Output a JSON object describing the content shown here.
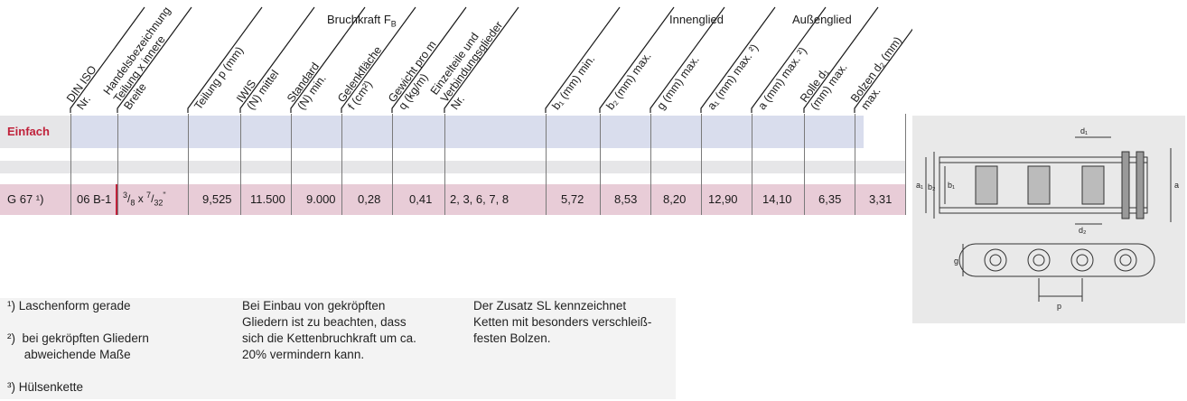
{
  "header": {
    "columns": [
      {
        "id": "din",
        "lines": [
          "DIN ISO",
          "Nr."
        ]
      },
      {
        "id": "handel",
        "lines": [
          "Handelsbezeichnung",
          "Teilung x innere",
          "Breite"
        ]
      },
      {
        "id": "teilung",
        "lines": [
          "Teilung p (mm)"
        ]
      },
      {
        "id": "iwis",
        "lines": [
          "IWIS",
          "(N) mittel"
        ]
      },
      {
        "id": "standard",
        "lines": [
          "Standard",
          "(N) min."
        ]
      },
      {
        "id": "gelenk",
        "lines": [
          "Gelenkfläche",
          "f (cm²)"
        ]
      },
      {
        "id": "gewicht",
        "lines": [
          "Gewicht pro m",
          "q (kg/m)"
        ]
      },
      {
        "id": "einzel",
        "lines": [
          "Einzelteile und",
          "Verbindungsglieder",
          "Nr."
        ]
      },
      {
        "id": "b1",
        "lines": [
          "b₁ (mm) min."
        ]
      },
      {
        "id": "b2",
        "lines": [
          "b₂ (mm) max."
        ]
      },
      {
        "id": "g",
        "lines": [
          "g (mm) max."
        ]
      },
      {
        "id": "a1",
        "lines": [
          "a₁ (mm) max. ²)"
        ]
      },
      {
        "id": "a",
        "lines": [
          "a (mm) max. ²)"
        ]
      },
      {
        "id": "rolle",
        "lines": [
          "Rolle d₁",
          "(mm) max."
        ]
      },
      {
        "id": "bolzen",
        "lines": [
          "Bolzen d₂ (mm)",
          "max."
        ]
      }
    ],
    "groups": {
      "bruchkraft": "Bruchkraft F",
      "bruchkraft_sub": "B",
      "innenglied": "Innenglied",
      "aussenglied": "Außenglied"
    }
  },
  "section_label": "Einfach",
  "row": {
    "cells": {
      "name": "G 67 ¹)",
      "din": "06 B-1",
      "handel_num1": "3",
      "handel_den1": "8",
      "handel_mid": " x ",
      "handel_num2": "7",
      "handel_den2": "32",
      "handel_suffix": "\"",
      "teilung": "9,525",
      "iwis": "11.500",
      "standard": "9.000",
      "gelenk": "0,28",
      "gewicht": "0,41",
      "einzel": "2, 3, 6, 7, 8",
      "b1": "5,72",
      "b2": "8,53",
      "g": "8,20",
      "a1": "12,90",
      "a": "14,10",
      "rolle": "6,35",
      "bolzen": "3,31"
    }
  },
  "footnotes": {
    "col1": [
      "¹)  Laschenform gerade",
      "²)  bei gekröpften Gliedern\n     abweichende Maße",
      "³)  Hülsenkette"
    ],
    "col2": "Bei Einbau von gekröpften\nGliedern ist zu beachten, dass\nsich die Kettenbruchkraft um ca.\n20% vermindern kann.",
    "col3": "Der Zusatz SL kennzeichnet\nKetten mit besonders verschleiß-\nfesten Bolzen."
  },
  "diagram": {
    "labels": [
      "d₁",
      "a₁",
      "b₂",
      "b₁",
      "a",
      "d₂",
      "g",
      "p"
    ]
  },
  "colors": {
    "accent_red": "#c0223b",
    "row_pink": "#e8ccd7",
    "row_blue": "#d9dded",
    "row_gray": "#e6e6e8"
  }
}
